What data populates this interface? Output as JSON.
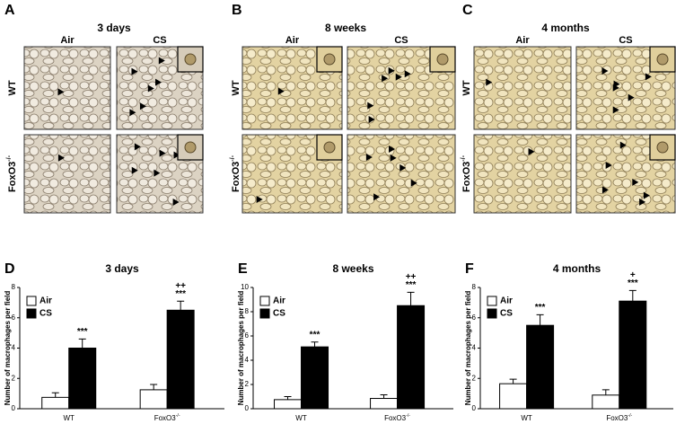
{
  "figure_top": [
    {
      "panel": "A",
      "title": "3 days",
      "columns": [
        "Air",
        "CS"
      ],
      "rows": [
        "WT",
        "FoxO3-/-"
      ]
    },
    {
      "panel": "B",
      "title": "8 weeks",
      "columns": [
        "Air",
        "CS"
      ],
      "rows": [
        "WT",
        "FoxO3-/-"
      ]
    },
    {
      "panel": "C",
      "title": "4 months",
      "columns": [
        "Air",
        "CS"
      ],
      "rows": [
        "WT",
        "FoxO3-/-"
      ]
    }
  ],
  "chart_data": [
    {
      "type": "bar",
      "panel": "D",
      "title": "3 days",
      "y_label": "Number of macrophages per field",
      "categories": [
        "WT",
        "FoxO3-/-"
      ],
      "legend": "upper left",
      "series": [
        {
          "name": "Air",
          "color": "#ffffff",
          "values": [
            0.75,
            1.25
          ],
          "errors": [
            0.3,
            0.35
          ]
        },
        {
          "name": "CS",
          "color": "#000000",
          "values": [
            4.0,
            6.5
          ],
          "errors": [
            0.6,
            0.6
          ],
          "significance": [
            "***",
            "***"
          ],
          "vs_wt": [
            null,
            "++"
          ]
        }
      ],
      "ylim": [
        0,
        8
      ],
      "yticks": [
        0,
        2,
        4,
        6,
        8
      ]
    },
    {
      "type": "bar",
      "panel": "E",
      "title": "8 weeks",
      "y_label": "Number of macrophages per field",
      "categories": [
        "WT",
        "FoxO3-/-"
      ],
      "legend": "upper left",
      "series": [
        {
          "name": "Air",
          "color": "#ffffff",
          "values": [
            0.75,
            0.85
          ],
          "errors": [
            0.25,
            0.3
          ]
        },
        {
          "name": "CS",
          "color": "#000000",
          "values": [
            5.1,
            8.5
          ],
          "errors": [
            0.4,
            1.1
          ],
          "significance": [
            "***",
            "***"
          ],
          "vs_wt": [
            null,
            "++"
          ]
        }
      ],
      "ylim": [
        0,
        10
      ],
      "yticks": [
        0,
        2,
        4,
        6,
        8,
        10
      ]
    },
    {
      "type": "bar",
      "panel": "F",
      "title": "4 months",
      "y_label": "Number of macrophages per field",
      "categories": [
        "WT",
        "FoxO3-/-"
      ],
      "legend": "upper left",
      "series": [
        {
          "name": "Air",
          "color": "#ffffff",
          "values": [
            1.65,
            0.9
          ],
          "errors": [
            0.3,
            0.35
          ]
        },
        {
          "name": "CS",
          "color": "#000000",
          "values": [
            5.5,
            7.1
          ],
          "errors": [
            0.7,
            0.7
          ],
          "significance": [
            "***",
            "***"
          ],
          "vs_wt": [
            null,
            "+"
          ]
        }
      ],
      "ylim": [
        0,
        8
      ],
      "yticks": [
        0,
        2,
        4,
        6,
        8
      ]
    }
  ]
}
